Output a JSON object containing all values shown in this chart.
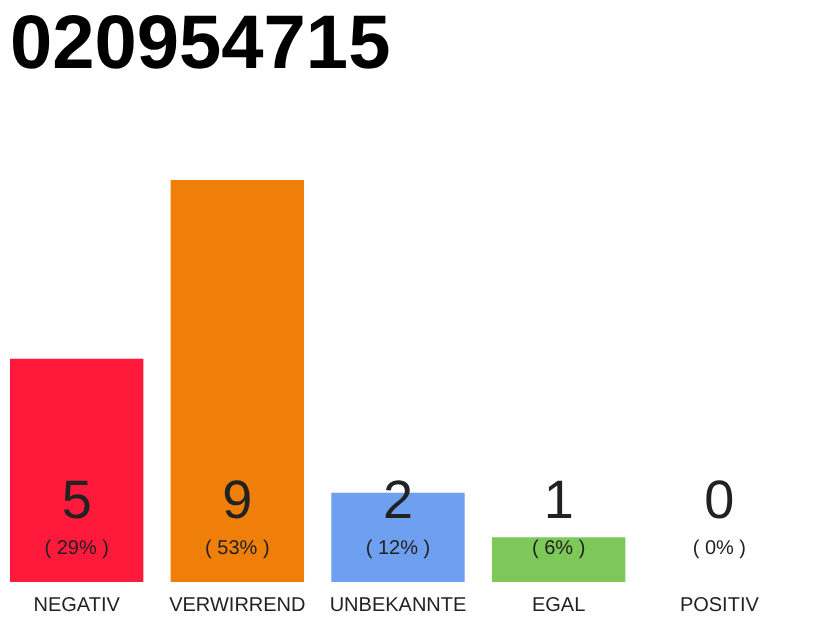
{
  "chart_data": {
    "type": "bar",
    "title": "020954715",
    "categories": [
      "NEGATIV",
      "VERWIRREND",
      "UNBEKANNTE",
      "EGAL",
      "POSITIV"
    ],
    "values": [
      5,
      9,
      2,
      1,
      0
    ],
    "colors": [
      "#ff1a3c",
      "#f07f0a",
      "#6ea0ef",
      "#7ec85a",
      "#cccccc"
    ],
    "data_labels": true,
    "annotations": [
      "( 29% )",
      "( 53% )",
      "( 12% )",
      "( 6% )",
      "( 0% )"
    ],
    "tick_labels": "x"
  }
}
